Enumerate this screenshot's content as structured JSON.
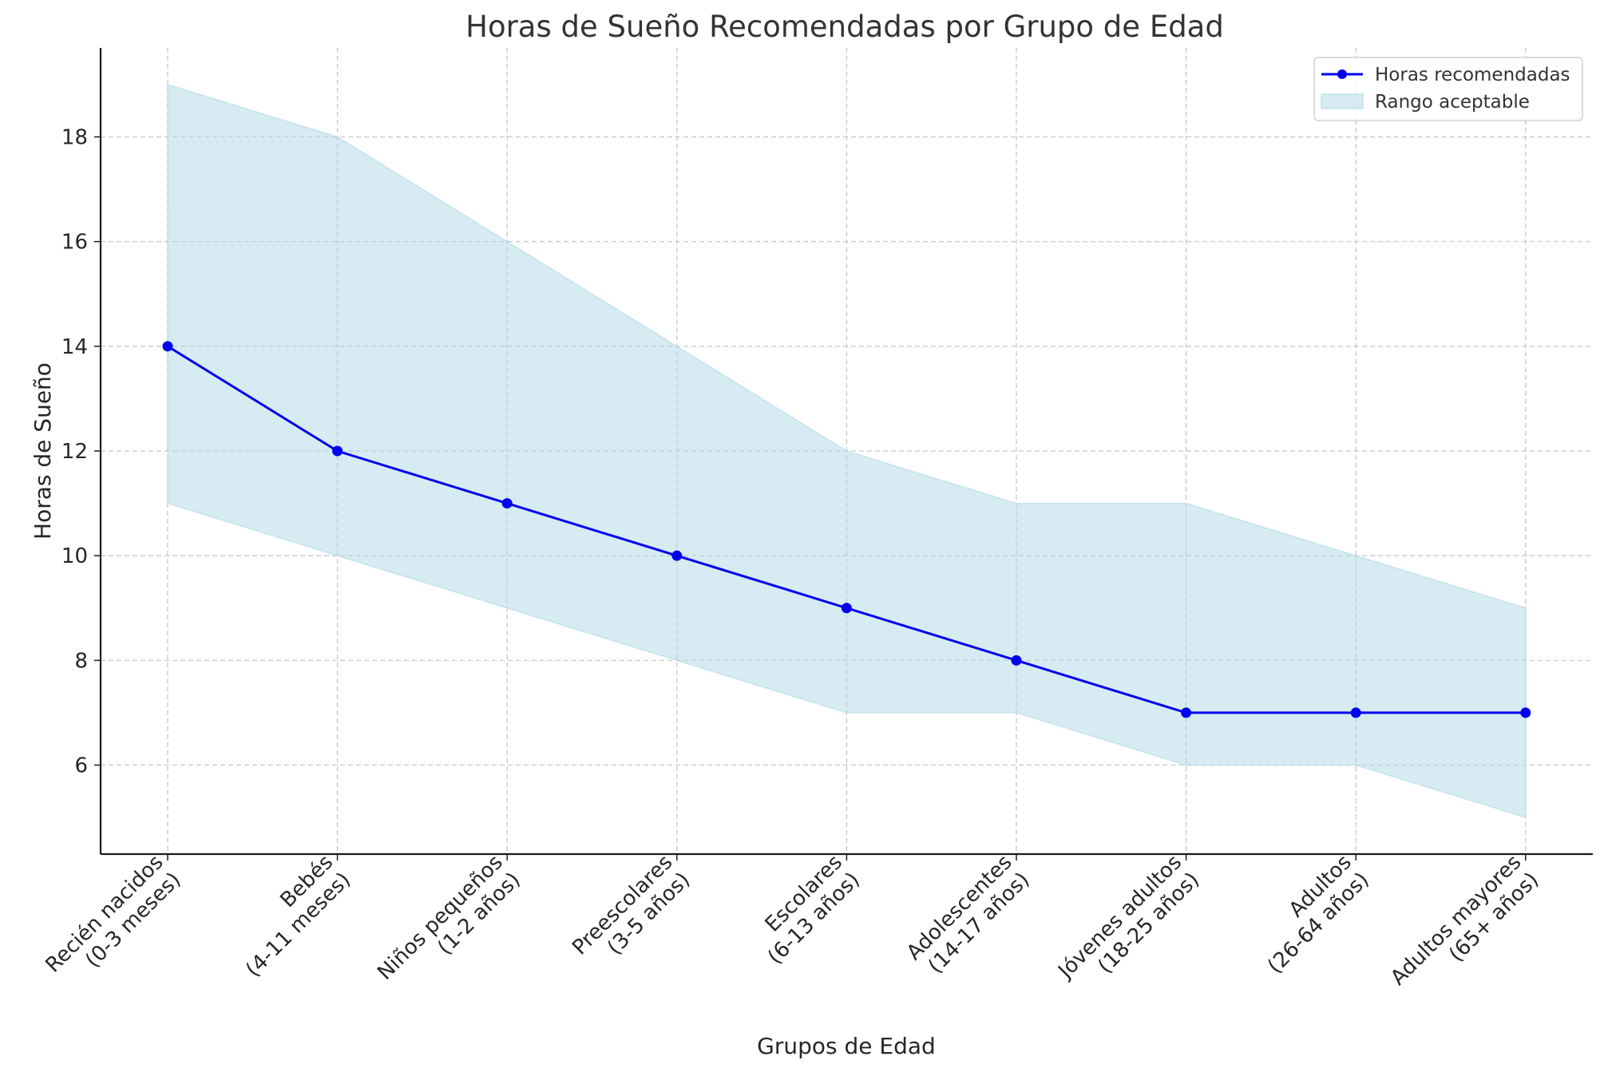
{
  "chart_data": {
    "type": "line",
    "title": "Horas de Sueño Recomendadas por Grupo de Edad",
    "xlabel": "Grupos de Edad",
    "ylabel": "Horas de Sueño",
    "categories": [
      [
        "Recién nacidos",
        "(0-3 meses)"
      ],
      [
        "Bebés",
        "(4-11 meses)"
      ],
      [
        "Niños pequeños",
        "(1-2 años)"
      ],
      [
        "Preescolares",
        "(3-5 años)"
      ],
      [
        "Escolares",
        "(6-13 años)"
      ],
      [
        "Adolescentes",
        "(14-17 años)"
      ],
      [
        "Jóvenes adultos",
        "(18-25 años)"
      ],
      [
        "Adultos",
        "(26-64 años)"
      ],
      [
        "Adultos mayores",
        "(65+ años)"
      ]
    ],
    "series": [
      {
        "name": "Horas recomendadas",
        "values": [
          14,
          12,
          11,
          10,
          9,
          8,
          7,
          7,
          7
        ],
        "color": "#0000ee"
      }
    ],
    "range": {
      "name": "Rango aceptable",
      "lower": [
        11,
        10,
        9,
        8,
        7,
        7,
        6,
        6,
        5
      ],
      "upper": [
        19,
        18,
        16,
        14,
        12,
        11,
        11,
        10,
        9
      ],
      "color": "#add8e6"
    },
    "ylim": [
      4.3,
      19.7
    ],
    "yticks": [
      6,
      8,
      10,
      12,
      14,
      16,
      18
    ],
    "grid": true,
    "legend_position": "top-right"
  }
}
